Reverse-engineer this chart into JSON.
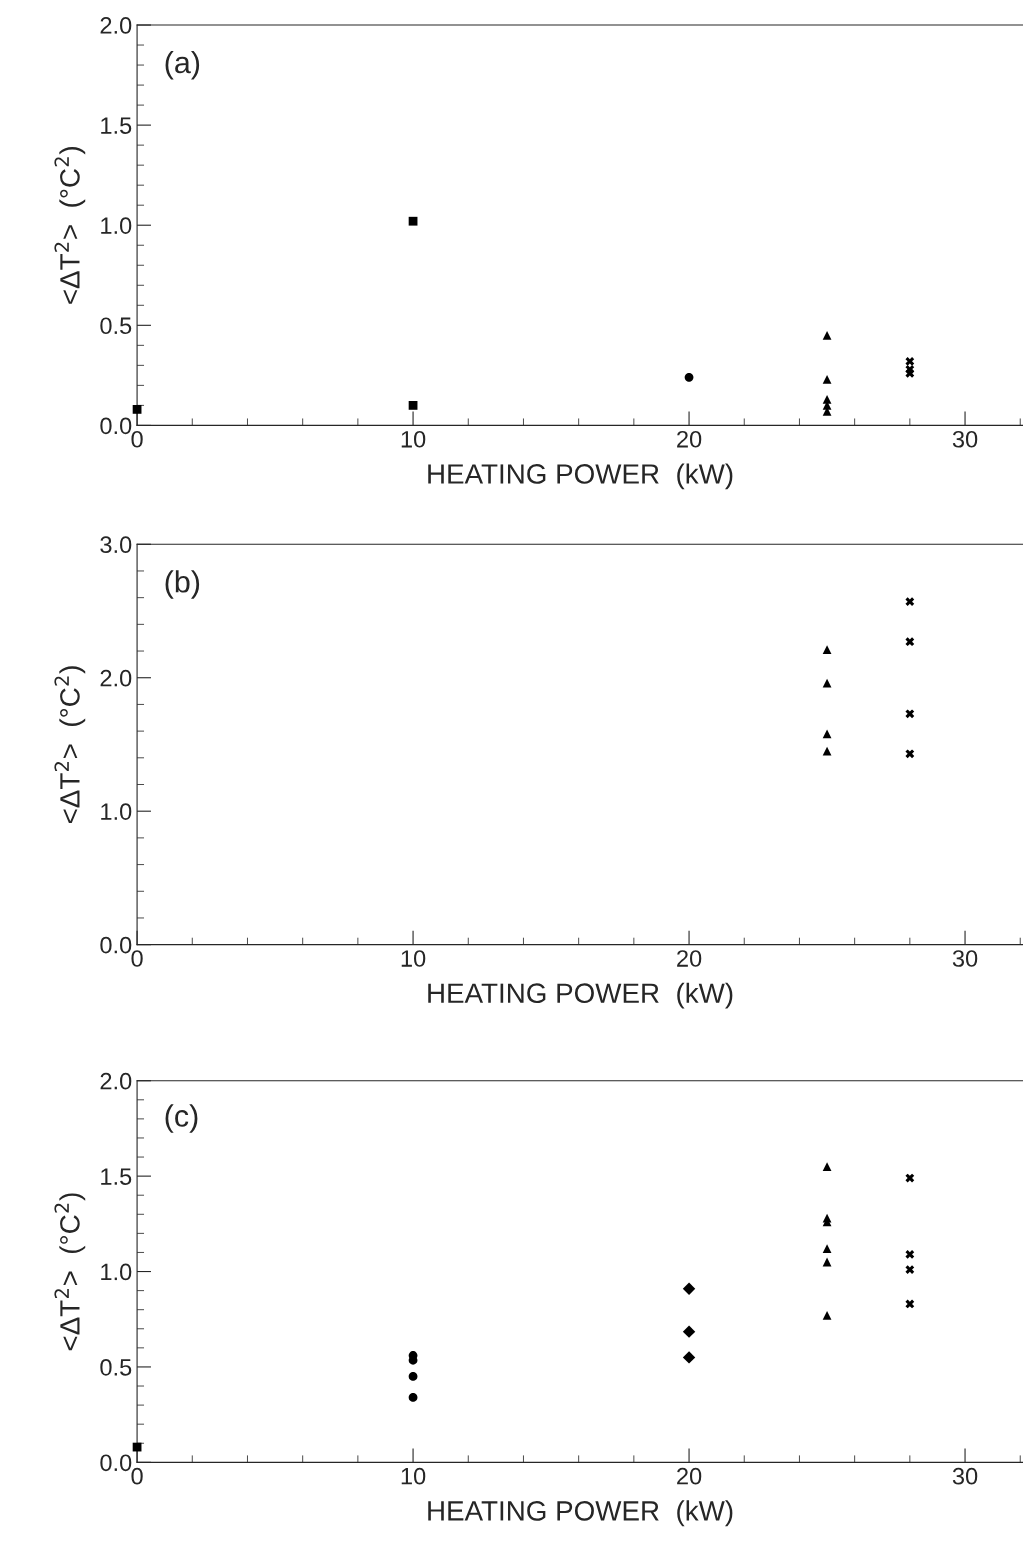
{
  "chart_data": [
    {
      "type": "scatter",
      "xlabel": "HEATING POWER  (kW)",
      "ylabel": "<ΔT$^{2}$>  (°C$^{2}$)",
      "annotations": [
        "(a)"
      ],
      "xlim": [
        0,
        32.1
      ],
      "xticks": [
        0,
        10,
        20,
        30
      ],
      "ylim": [
        0,
        2.0
      ],
      "yticks": [
        {
          "value": 0,
          "label": "0.0"
        },
        {
          "value": 0.5,
          "label": "0.5"
        },
        {
          "value": 1,
          "label": "1.0"
        },
        {
          "value": 1.5,
          "label": "1.5"
        },
        {
          "value": 2,
          "label": "2.0"
        }
      ],
      "grid": false,
      "legend": false,
      "series": [
        {
          "color": "#000000",
          "marker": "square",
          "x": [
            0
          ],
          "values": [
            0.08
          ]
        },
        {
          "color": "#000000",
          "marker": "square",
          "x": [
            10,
            10
          ],
          "values": [
            1.02,
            0.1
          ]
        },
        {
          "color": "#000000",
          "marker": "circle",
          "x": [
            20
          ],
          "values": [
            0.24
          ]
        },
        {
          "color": "#000000",
          "marker": "triangle",
          "x": [
            25,
            25,
            25,
            25,
            25
          ],
          "values": [
            0.45,
            0.23,
            0.13,
            0.1,
            0.07
          ]
        },
        {
          "color": "#000000",
          "marker": "cross",
          "x": [
            28,
            28,
            28
          ],
          "values": [
            0.32,
            0.28,
            0.26
          ]
        }
      ]
    },
    {
      "type": "scatter",
      "xlabel": "HEATING POWER  (kW)",
      "ylabel": "<ΔT$^{2}$>  (°C$^{2}$)",
      "annotations": [
        "(b)"
      ],
      "xlim": [
        0,
        32.1
      ],
      "xticks": [
        0,
        10,
        20,
        30
      ],
      "ylim": [
        0,
        3.0
      ],
      "yticks": [
        {
          "value": 0,
          "label": "0.0"
        },
        {
          "value": 1,
          "label": "1.0"
        },
        {
          "value": 2,
          "label": "2.0"
        },
        {
          "value": 3,
          "label": "3.0"
        }
      ],
      "grid": false,
      "legend": false,
      "series": [
        {
          "color": "#000000",
          "marker": "triangle",
          "x": [
            25,
            25,
            25,
            25
          ],
          "values": [
            2.21,
            1.96,
            1.58,
            1.45
          ]
        },
        {
          "color": "#000000",
          "marker": "cross",
          "x": [
            28,
            28,
            28,
            28
          ],
          "values": [
            2.57,
            2.27,
            1.73,
            1.43
          ]
        }
      ]
    },
    {
      "type": "scatter",
      "xlabel": "HEATING POWER  (kW)",
      "ylabel": "<ΔT$^{2}$>  (°C$^{2}$)",
      "annotations": [
        "(c)"
      ],
      "xlim": [
        0,
        32.1
      ],
      "xticks": [
        0,
        10,
        20,
        30
      ],
      "ylim": [
        0,
        2.0
      ],
      "yticks": [
        {
          "value": 0,
          "label": "0.0"
        },
        {
          "value": 0.5,
          "label": "0.5"
        },
        {
          "value": 1,
          "label": "1.0"
        },
        {
          "value": 1.5,
          "label": "1.5"
        },
        {
          "value": 2,
          "label": "2.0"
        }
      ],
      "grid": false,
      "legend": false,
      "series": [
        {
          "color": "#000000",
          "marker": "square",
          "x": [
            0
          ],
          "values": [
            0.08
          ]
        },
        {
          "color": "#000000",
          "marker": "circle",
          "x": [
            10,
            10,
            10,
            10
          ],
          "values": [
            0.56,
            0.535,
            0.45,
            0.34
          ]
        },
        {
          "color": "#000000",
          "marker": "diamond",
          "x": [
            20,
            20,
            20
          ],
          "values": [
            0.91,
            0.685,
            0.55
          ]
        },
        {
          "color": "#000000",
          "marker": "triangle",
          "x": [
            25,
            25,
            25,
            25,
            25,
            25
          ],
          "values": [
            1.55,
            1.28,
            1.26,
            1.12,
            1.05,
            0.77
          ]
        },
        {
          "color": "#000000",
          "marker": "cross",
          "x": [
            28,
            28,
            28,
            28
          ],
          "values": [
            1.49,
            1.09,
            1.01,
            0.83
          ]
        }
      ]
    }
  ]
}
